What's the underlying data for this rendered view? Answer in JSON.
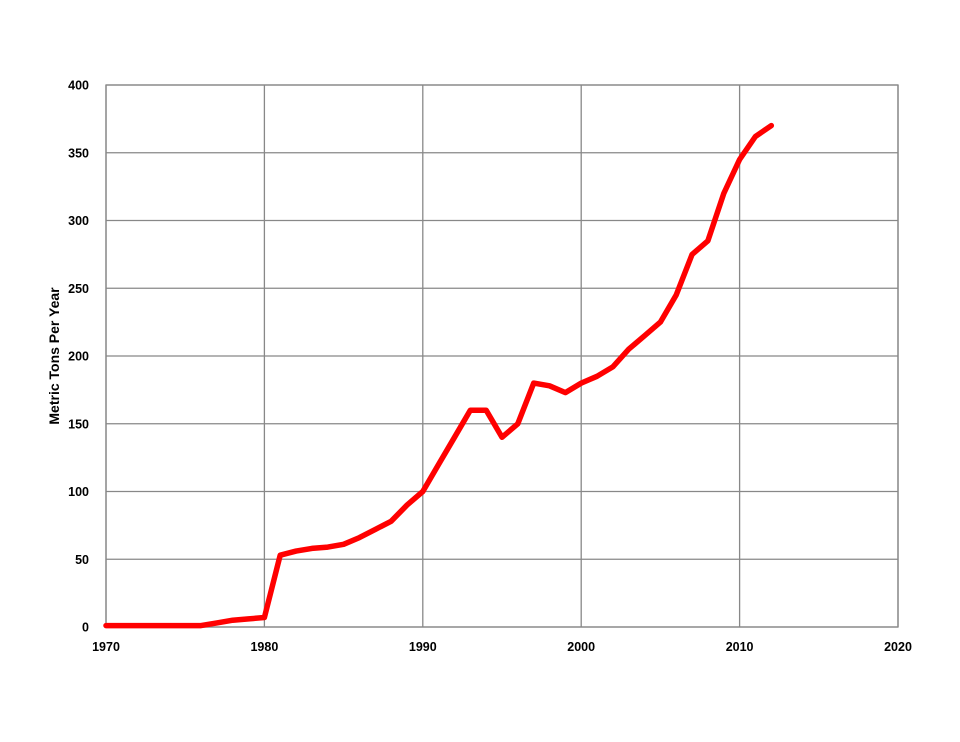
{
  "chart_data": {
    "type": "line",
    "title": "",
    "xlabel": "",
    "ylabel": "Metric Tons Per Year",
    "xlim": [
      1970,
      2020
    ],
    "ylim": [
      0,
      400
    ],
    "x_ticks": [
      1970,
      1980,
      1990,
      2000,
      2010,
      2020
    ],
    "y_ticks": [
      0,
      50,
      100,
      150,
      200,
      250,
      300,
      350,
      400
    ],
    "grid": true,
    "legend": "none",
    "series": [
      {
        "color": "#ff0000",
        "x": [
          1970,
          1971,
          1972,
          1973,
          1974,
          1975,
          1976,
          1977,
          1978,
          1979,
          1980,
          1981,
          1982,
          1983,
          1984,
          1985,
          1986,
          1987,
          1988,
          1989,
          1990,
          1991,
          1992,
          1993,
          1994,
          1995,
          1996,
          1997,
          1998,
          1999,
          2000,
          2001,
          2002,
          2003,
          2004,
          2005,
          2006,
          2007,
          2008,
          2009,
          2010,
          2011,
          2012
        ],
        "y": [
          1,
          1,
          1,
          1,
          1,
          1,
          1,
          3,
          5,
          6,
          7,
          53,
          56,
          58,
          59,
          61,
          66,
          72,
          78,
          90,
          100,
          120,
          140,
          160,
          160,
          140,
          150,
          180,
          178,
          173,
          180,
          185,
          192,
          205,
          215,
          225,
          245,
          275,
          285,
          320,
          345,
          362,
          370
        ]
      }
    ]
  }
}
